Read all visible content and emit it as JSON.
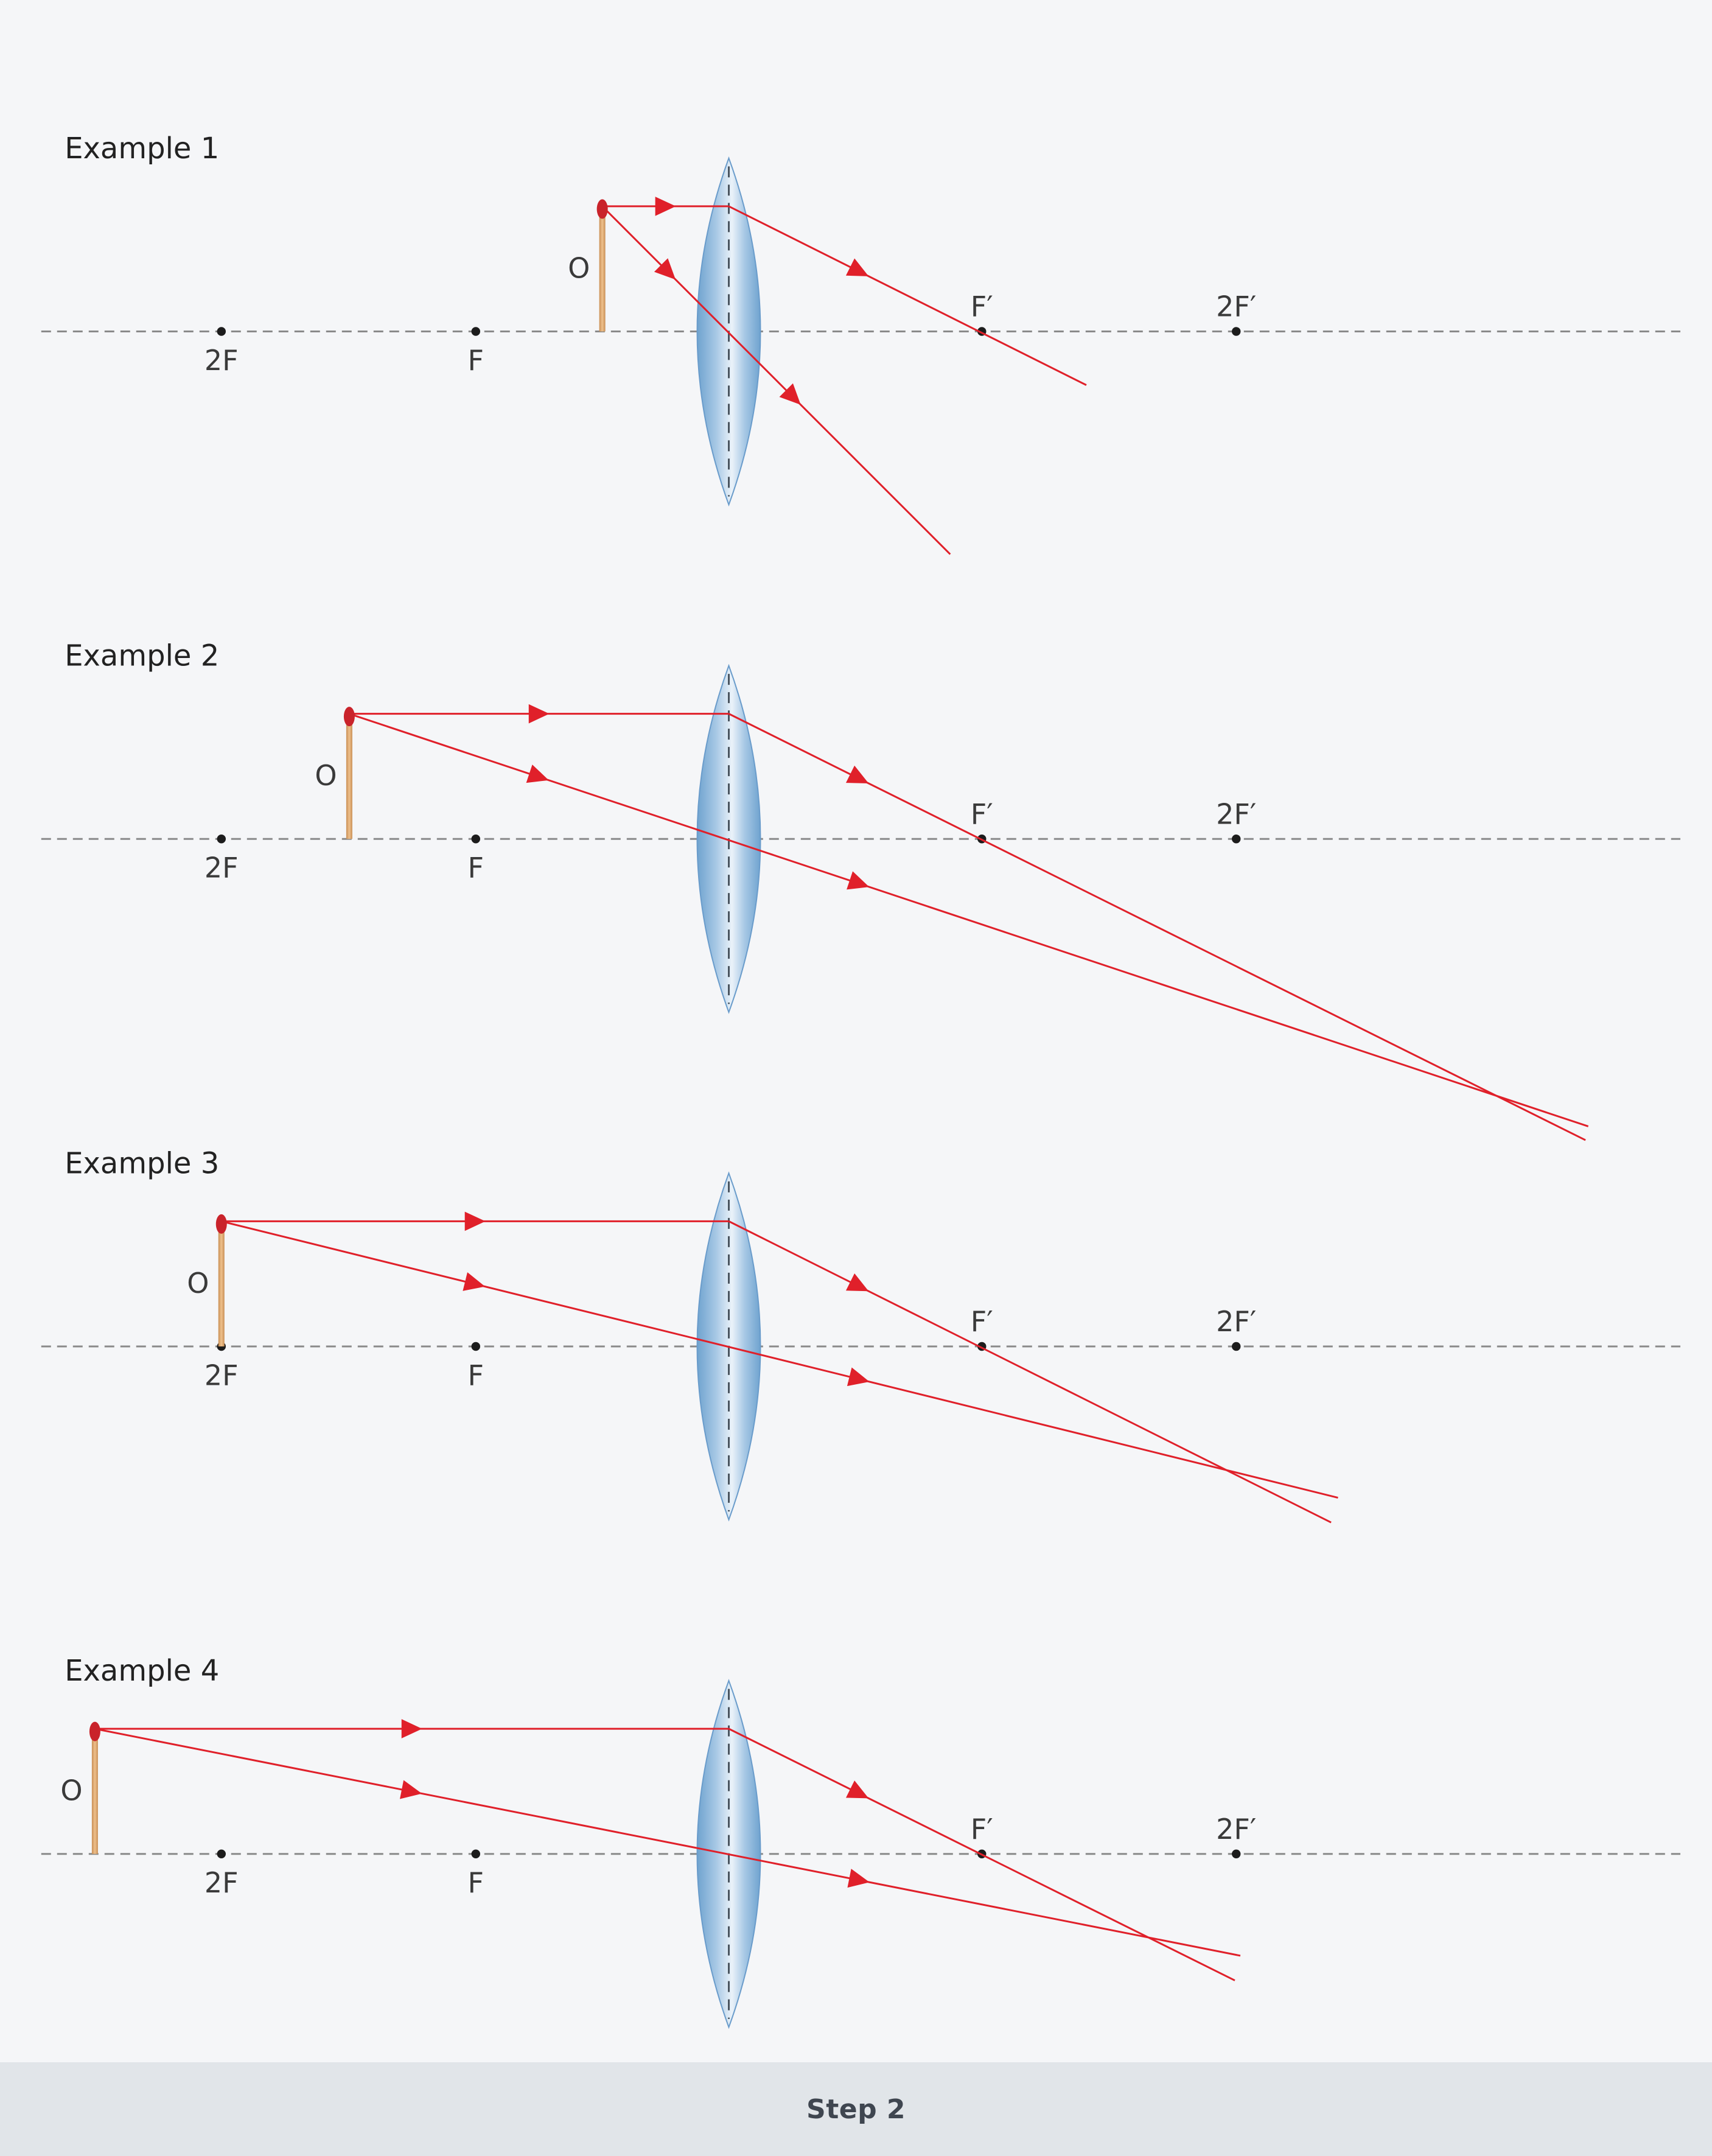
{
  "footer": {
    "label": "Step 2"
  },
  "colors": {
    "background": "#f5f6f8",
    "footer_background": "#e1e5e9",
    "ray": "#e0202a",
    "lens_edge": "#6fa3cf",
    "lens_center": "#eaf2f9",
    "object_stick": "#e2b37e",
    "object_tip": "#c9232b"
  },
  "icons": {
    "object": "matchstick-icon",
    "lens": "convex-lens-icon"
  },
  "labels": {
    "object": "O",
    "focus_left": "F",
    "double_focus_left": "2F",
    "focus_right": "F′",
    "double_focus_right": "2F′"
  },
  "examples": [
    {
      "title": "Example 1",
      "object_position": "between F and lens"
    },
    {
      "title": "Example 2",
      "object_position": "between 2F and F"
    },
    {
      "title": "Example 3",
      "object_position": "at 2F"
    },
    {
      "title": "Example 4",
      "object_position": "beyond 2F"
    }
  ]
}
